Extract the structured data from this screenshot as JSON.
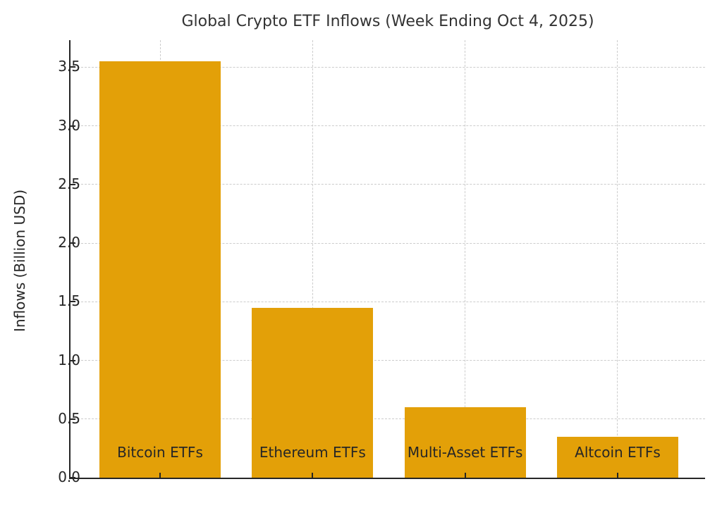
{
  "chart_data": {
    "type": "bar",
    "title": "Global Crypto ETF Inflows (Week Ending Oct 4, 2025)",
    "xlabel": "",
    "ylabel": "Inflows (Billion USD)",
    "categories": [
      "Bitcoin ETFs",
      "Ethereum ETFs",
      "Multi-Asset ETFs",
      "Altcoin ETFs"
    ],
    "values": [
      3.55,
      1.45,
      0.6,
      0.35
    ],
    "yticks": [
      0.0,
      0.5,
      1.0,
      1.5,
      2.0,
      2.5,
      3.0,
      3.5
    ],
    "ylim": [
      0,
      3.73
    ],
    "grid": true,
    "grid_style": "dashed",
    "legend": "none",
    "colors": {
      "bar": "#E3A008",
      "grid": "#cccccc",
      "axis": "#262626",
      "text": "#262626",
      "title": "#333333"
    }
  }
}
